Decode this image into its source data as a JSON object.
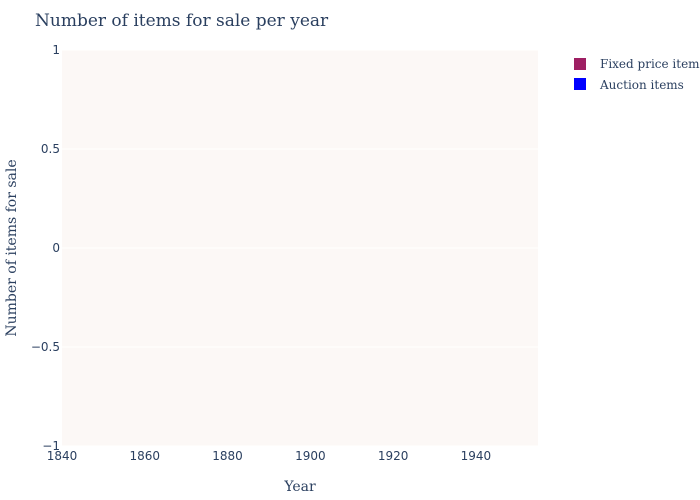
{
  "chart_data": {
    "type": "bar",
    "title": "Number of items for sale per year",
    "xlabel": "Year",
    "ylabel": "Number of items for sale",
    "xlim": [
      1840,
      1955
    ],
    "ylim": [
      -1,
      1
    ],
    "x_ticks": [
      "1840",
      "1860",
      "1880",
      "1900",
      "1920",
      "1940"
    ],
    "y_ticks": [
      "1",
      "0.5",
      "0",
      "−0.5",
      "−1"
    ],
    "x": [],
    "series": [
      {
        "name": "Fixed price items",
        "color": "#9e1f63",
        "values": []
      },
      {
        "name": "Auction items",
        "color": "#0000ff",
        "values": []
      }
    ],
    "grid": true,
    "legend_position": "top-right",
    "plot_background": "#fcf8f6"
  }
}
